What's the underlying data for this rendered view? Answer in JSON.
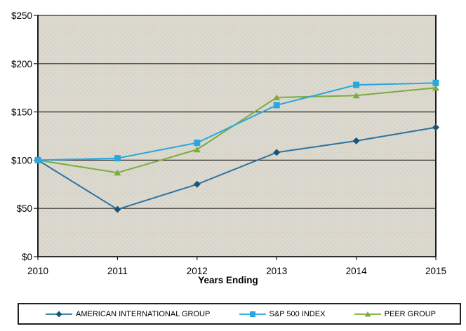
{
  "chart_data": {
    "type": "line",
    "title": "",
    "xlabel": "Years Ending",
    "ylabel": "",
    "categories": [
      "2010",
      "2011",
      "2012",
      "2013",
      "2014",
      "2015"
    ],
    "y_axis": {
      "ticks": [
        0,
        50,
        100,
        150,
        200,
        250
      ],
      "tick_labels": [
        "$0",
        "$50",
        "$100",
        "$150",
        "$200",
        "$250"
      ],
      "ylim": [
        0,
        250
      ]
    },
    "grid": "horizontal",
    "legend_position": "bottom",
    "colors": {
      "plot_bg": "#dcd9d0",
      "plot_bg_dot": "#c8c4b2",
      "grid": "#2f2f2f",
      "axis": "#1c1c1c",
      "text": "#000000"
    },
    "series": [
      {
        "name": "AMERICAN INTERNATIONAL GROUP",
        "marker": "diamond",
        "line_color": "#2d74a1",
        "marker_color": "#1a567a",
        "values": [
          100,
          49,
          75,
          108,
          120,
          134
        ]
      },
      {
        "name": "S&P 500 INDEX",
        "marker": "square",
        "line_color": "#2aa7dd",
        "marker_color": "#2aa7dd",
        "values": [
          100,
          102,
          118,
          157,
          178,
          180
        ]
      },
      {
        "name": "PEER GROUP",
        "marker": "triangle",
        "line_color": "#7cab3e",
        "marker_color": "#7cab3e",
        "values": [
          100,
          87,
          111,
          165,
          167,
          175
        ]
      }
    ]
  }
}
